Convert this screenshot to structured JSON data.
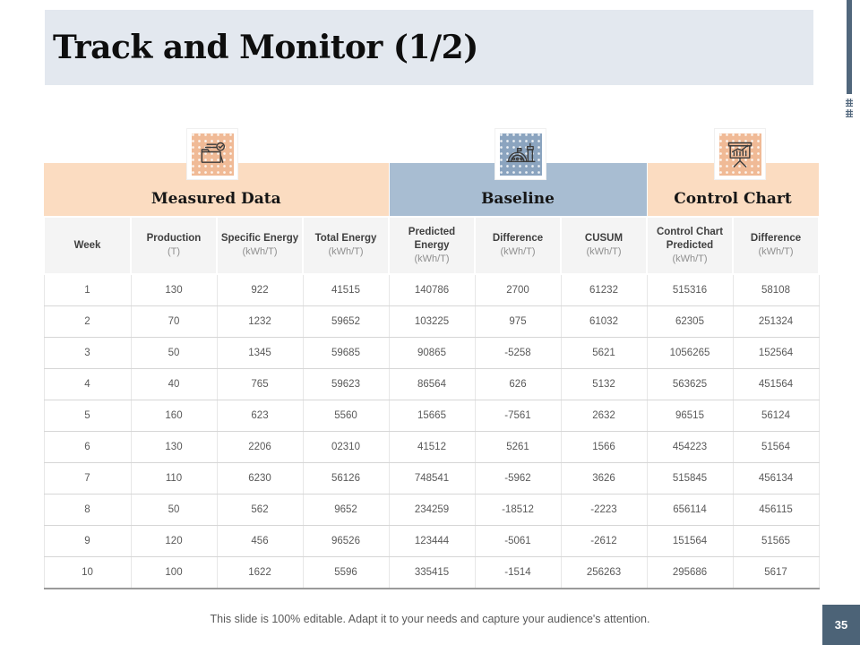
{
  "slide": {
    "title": "Track and Monitor (1/2)",
    "footer": "This slide is 100% editable. Adapt it to your needs and capture your audience's attention.",
    "page_number": "35"
  },
  "colors": {
    "peach_band": "#fbdcc1",
    "slate_band": "#a8bdd2",
    "peach_tile": "#f0ba96",
    "slate_tile": "#8ba4bf",
    "accent_bar": "#51677c",
    "page_badge": "#4c6377",
    "title_band": "#e3e8ef"
  },
  "groups": [
    {
      "label": "Measured Data",
      "icon": "folder-check-icon",
      "span": 4,
      "tone": "peach"
    },
    {
      "label": "Baseline",
      "icon": "plant-gauge-icon",
      "span": 3,
      "tone": "slate"
    },
    {
      "label": "Control Chart",
      "icon": "presentation-chart-icon",
      "span": 2,
      "tone": "peach"
    }
  ],
  "table": {
    "columns": [
      {
        "label": "Week",
        "unit": ""
      },
      {
        "label": "Production",
        "unit": "(T)"
      },
      {
        "label": "Specific Energy",
        "unit": "(kWh/T)"
      },
      {
        "label": "Total Energy",
        "unit": "(kWh/T)"
      },
      {
        "label": "Predicted Energy",
        "unit": "(kWh/T)"
      },
      {
        "label": "Difference",
        "unit": "(kWh/T)"
      },
      {
        "label": "CUSUM",
        "unit": "(kWh/T)"
      },
      {
        "label": "Control Chart Predicted",
        "unit": "(kWh/T)"
      },
      {
        "label": "Difference",
        "unit": "(kWh/T)"
      }
    ],
    "rows": [
      [
        "1",
        "130",
        "922",
        "41515",
        "140786",
        "2700",
        "61232",
        "515316",
        "58108"
      ],
      [
        "2",
        "70",
        "1232",
        "59652",
        "103225",
        "975",
        "61032",
        "62305",
        "251324"
      ],
      [
        "3",
        "50",
        "1345",
        "59685",
        "90865",
        "-5258",
        "5621",
        "1056265",
        "152564"
      ],
      [
        "4",
        "40",
        "765",
        "59623",
        "86564",
        "626",
        "5132",
        "563625",
        "451564"
      ],
      [
        "5",
        "160",
        "623",
        "5560",
        "15665",
        "-7561",
        "2632",
        "96515",
        "56124"
      ],
      [
        "6",
        "130",
        "2206",
        "02310",
        "41512",
        "5261",
        "1566",
        "454223",
        "51564"
      ],
      [
        "7",
        "110",
        "6230",
        "56126",
        "748541",
        "-5962",
        "3626",
        "515845",
        "456134"
      ],
      [
        "8",
        "50",
        "562",
        "9652",
        "234259",
        "-18512",
        "-2223",
        "656114",
        "456115"
      ],
      [
        "9",
        "120",
        "456",
        "96526",
        "123444",
        "-5061",
        "-2612",
        "151564",
        "51565"
      ],
      [
        "10",
        "100",
        "1622",
        "5596",
        "335415",
        "-1514",
        "256263",
        "295686",
        "5617"
      ]
    ]
  }
}
